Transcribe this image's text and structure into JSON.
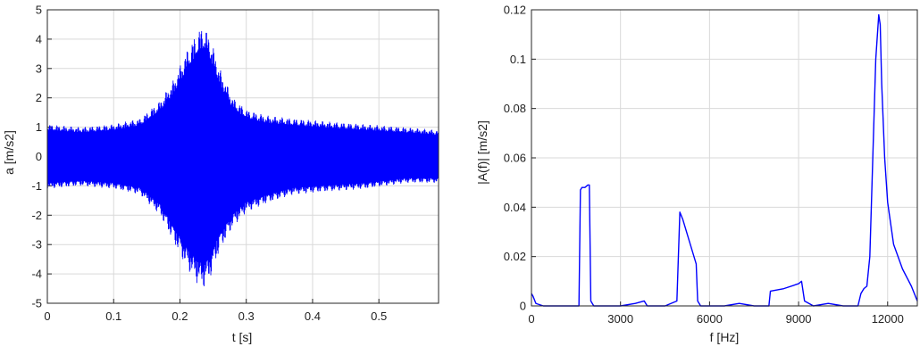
{
  "chart_data": [
    {
      "type": "line",
      "xlabel": "t [s]",
      "ylabel": "a [m/s2]",
      "xlim": [
        0,
        0.59
      ],
      "ylim": [
        -5,
        5
      ],
      "xticks": [
        "0",
        "0.1",
        "0.2",
        "0.3",
        "0.4",
        "0.5"
      ],
      "yticks": [
        "5",
        "4",
        "3",
        "2",
        "1",
        "0",
        "-1",
        "-2",
        "-3",
        "-4",
        "-5"
      ],
      "grid": true,
      "series_color": "#0000ff",
      "envelope": {
        "t": [
          0,
          0.05,
          0.1,
          0.14,
          0.17,
          0.19,
          0.21,
          0.225,
          0.235,
          0.245,
          0.26,
          0.28,
          0.3,
          0.33,
          0.37,
          0.42,
          0.48,
          0.54,
          0.59
        ],
        "upper": [
          1.1,
          1.0,
          1.1,
          1.3,
          1.9,
          2.6,
          3.6,
          4.2,
          4.5,
          4.1,
          3.0,
          2.0,
          1.6,
          1.4,
          1.3,
          1.2,
          1.1,
          1.0,
          0.9
        ],
        "lower": [
          -1.1,
          -1.0,
          -1.1,
          -1.3,
          -2.0,
          -2.9,
          -3.8,
          -4.3,
          -4.5,
          -4.2,
          -3.2,
          -2.4,
          -1.9,
          -1.6,
          -1.3,
          -1.2,
          -1.1,
          -0.9,
          -0.9
        ]
      }
    },
    {
      "type": "line",
      "xlabel": "f [Hz]",
      "ylabel": "|A(f)| [m/s2]",
      "xlim": [
        0,
        13000
      ],
      "ylim": [
        0,
        0.12
      ],
      "xticks": [
        "0",
        "3000",
        "6000",
        "9000",
        "12000"
      ],
      "yticks": [
        "0.12",
        "0.1",
        "0.08",
        "0.06",
        "0.04",
        "0.02",
        "0"
      ],
      "grid": true,
      "series_color": "#0000ff",
      "x": [
        0,
        50,
        150,
        400,
        1000,
        1600,
        1650,
        1700,
        1800,
        1900,
        1950,
        2000,
        2100,
        2500,
        3000,
        3500,
        3800,
        3900,
        4500,
        4900,
        5000,
        5100,
        5300,
        5500,
        5550,
        5600,
        5700,
        6500,
        7000,
        7500,
        8000,
        8050,
        8500,
        9000,
        9100,
        9200,
        9500,
        10000,
        10500,
        11000,
        11100,
        11200,
        11300,
        11400,
        11500,
        11600,
        11700,
        11750,
        11800,
        11900,
        12000,
        12200,
        12500,
        12800,
        13000
      ],
      "y": [
        0.005,
        0.004,
        0.001,
        0.0,
        0.0,
        0.0,
        0.047,
        0.048,
        0.048,
        0.049,
        0.049,
        0.002,
        0.0,
        0.0,
        0.0,
        0.001,
        0.002,
        0.0,
        0.0,
        0.002,
        0.038,
        0.035,
        0.027,
        0.019,
        0.017,
        0.002,
        0.0,
        0.0,
        0.001,
        0.0,
        0.0,
        0.006,
        0.007,
        0.009,
        0.01,
        0.002,
        0.0,
        0.001,
        0.0,
        0.0,
        0.005,
        0.007,
        0.008,
        0.02,
        0.06,
        0.1,
        0.118,
        0.114,
        0.09,
        0.06,
        0.042,
        0.025,
        0.015,
        0.008,
        0.002
      ]
    }
  ]
}
